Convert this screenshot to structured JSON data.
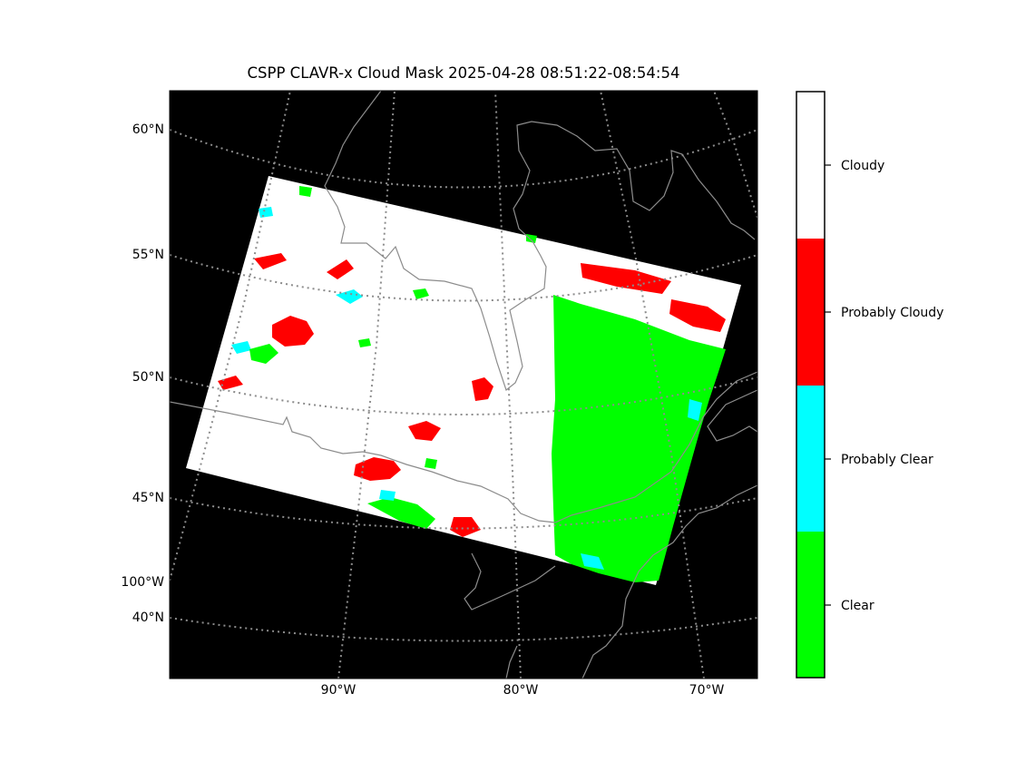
{
  "title": "CSPP CLAVR-x Cloud Mask 2025-04-28 08:51:22-08:54:54",
  "map": {
    "background_color": "#000000",
    "graticule_color": "#8c8c8c",
    "coastline_color": "#8c8c8c",
    "lat_labels": [
      {
        "id": "lat-60",
        "text": "60°N"
      },
      {
        "id": "lat-55",
        "text": "55°N"
      },
      {
        "id": "lat-50",
        "text": "50°N"
      },
      {
        "id": "lat-45",
        "text": "45°N"
      },
      {
        "id": "lon-100",
        "text": "100°W"
      },
      {
        "id": "lat-40",
        "text": "40°N"
      }
    ],
    "lon_labels": [
      {
        "id": "lon-90",
        "text": "90°W"
      },
      {
        "id": "lon-80",
        "text": "80°W"
      },
      {
        "id": "lon-70",
        "text": "70°W"
      }
    ]
  },
  "colorbar": {
    "categories": [
      {
        "id": "cloudy",
        "label": "Cloudy",
        "color": "#ffffff"
      },
      {
        "id": "probably-cloudy",
        "label": "Probably Cloudy",
        "color": "#ff0000"
      },
      {
        "id": "probably-clear",
        "label": "Probably Clear",
        "color": "#00ffff"
      },
      {
        "id": "clear",
        "label": "Clear",
        "color": "#00ff00"
      }
    ]
  }
}
